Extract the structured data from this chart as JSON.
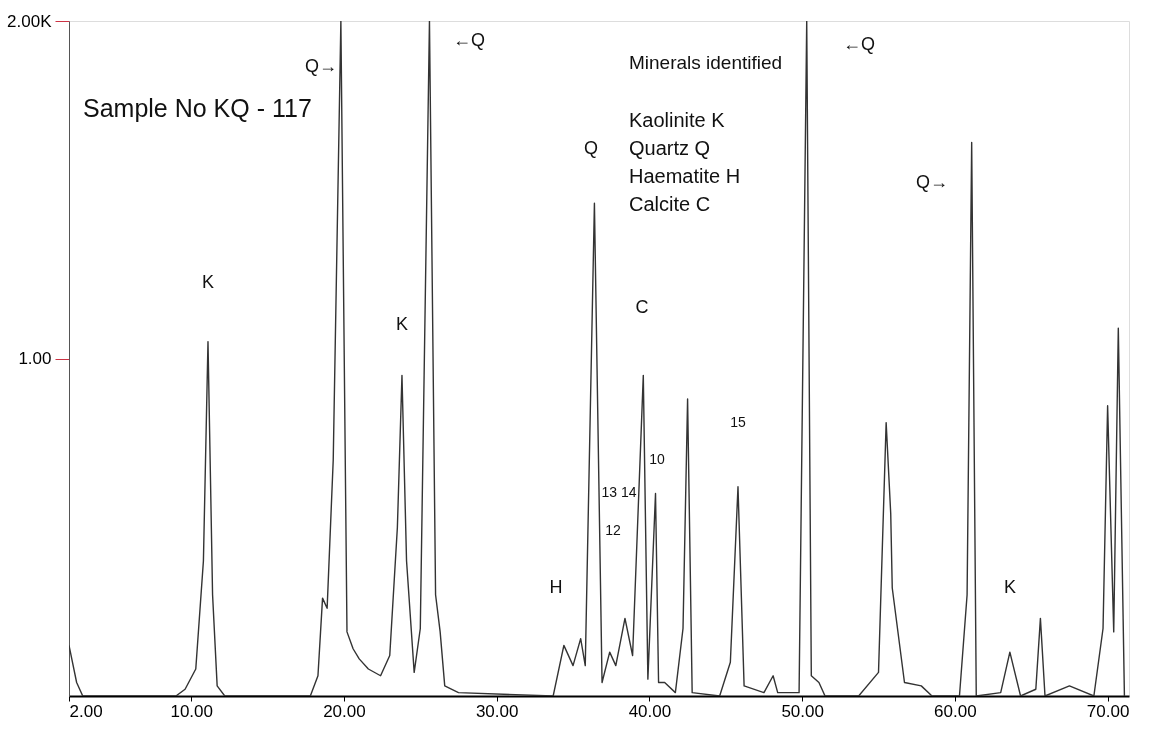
{
  "chart_data": {
    "type": "line",
    "title": "Sample No KQ - 117",
    "x": [
      2.0,
      2.5,
      2.9,
      9.0,
      9.6,
      10.3,
      10.8,
      11.1,
      11.4,
      11.7,
      12.2,
      17.8,
      18.3,
      18.6,
      18.9,
      19.3,
      19.8,
      20.2,
      20.6,
      21.0,
      21.6,
      22.4,
      23.0,
      23.5,
      23.8,
      24.1,
      24.6,
      25.0,
      25.6,
      26.0,
      26.3,
      26.6,
      27.5,
      33.7,
      34.4,
      35.0,
      35.5,
      35.8,
      36.4,
      36.9,
      37.4,
      37.8,
      38.4,
      38.9,
      39.6,
      39.9,
      40.4,
      40.6,
      41.0,
      41.7,
      42.2,
      42.5,
      42.8,
      44.6,
      45.3,
      45.8,
      46.2,
      47.5,
      48.1,
      48.4,
      49.8,
      50.3,
      50.6,
      51.1,
      51.5,
      53.7,
      55.0,
      55.5,
      55.8,
      55.9,
      56.7,
      57.8,
      58.5,
      60.3,
      60.8,
      61.1,
      61.4,
      63.0,
      63.6,
      64.3,
      65.3,
      65.6,
      65.9,
      67.5,
      69.1,
      69.7,
      70.0,
      70.4,
      70.7,
      71.1
    ],
    "series": [
      {
        "color": "#333333",
        "values": [
          0.15,
          0.04,
          0,
          0,
          0.02,
          0.08,
          0.4,
          1.05,
          0.3,
          0.03,
          0,
          0,
          0.06,
          0.29,
          0.26,
          0.7,
          2.0,
          0.19,
          0.14,
          0.11,
          0.08,
          0.06,
          0.12,
          0.5,
          0.95,
          0.4,
          0.07,
          0.2,
          2.0,
          0.3,
          0.19,
          0.03,
          0.01,
          0,
          0.15,
          0.09,
          0.17,
          0.09,
          1.46,
          0.04,
          0.13,
          0.09,
          0.23,
          0.12,
          0.95,
          0.05,
          0.6,
          0.04,
          0.04,
          0.01,
          0.2,
          0.88,
          0.01,
          0,
          0.1,
          0.62,
          0.03,
          0.01,
          0.06,
          0.01,
          0.01,
          2.0,
          0.06,
          0.04,
          0,
          0,
          0.07,
          0.81,
          0.54,
          0.32,
          0.04,
          0.03,
          0,
          0,
          0.3,
          1.64,
          0,
          0.01,
          0.13,
          0,
          0.02,
          0.23,
          0,
          0.03,
          0,
          0.2,
          0.86,
          0.19,
          1.09,
          0
        ]
      }
    ],
    "xlim": [
      2,
      71.4
    ],
    "xticks": [
      {
        "value": 2,
        "label": "2.00"
      },
      {
        "value": 10,
        "label": "10.00"
      },
      {
        "value": 20,
        "label": "20.00"
      },
      {
        "value": 30,
        "label": "30.00"
      },
      {
        "value": 40,
        "label": "40.00"
      },
      {
        "value": 50,
        "label": "50.00"
      },
      {
        "value": 60,
        "label": "60.00"
      },
      {
        "value": 70,
        "label": "70.00"
      }
    ],
    "ylim": [
      0,
      2
    ],
    "yticks": [
      {
        "value": 1,
        "label": "1.00"
      },
      {
        "value": 2,
        "label": "2.00K"
      }
    ],
    "grid": false,
    "marker": "none",
    "line_style": "solid",
    "annotations": [
      "Minerals identified",
      "Kaolinite K",
      "Quartz Q",
      "Haematite H",
      "Calcite C",
      "K",
      "Q→",
      "K",
      "←Q",
      "H",
      "Q",
      "12",
      "13 14",
      "C",
      "10",
      "15",
      "←Q",
      "Q→",
      "K"
    ]
  }
}
